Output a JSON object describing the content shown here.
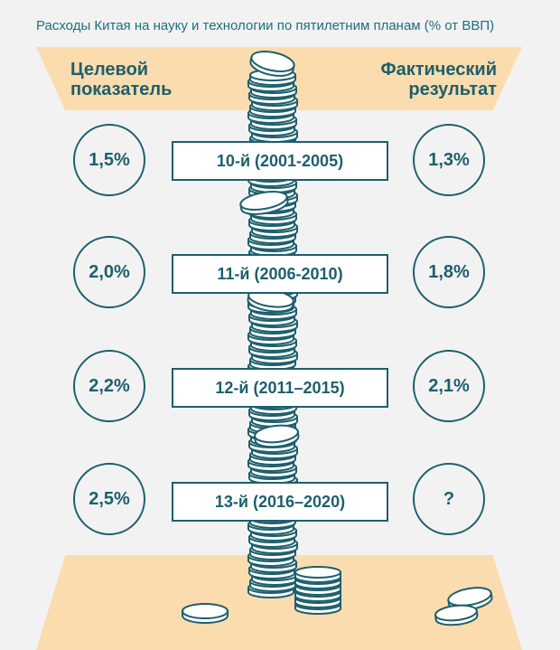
{
  "title": "Расходы Китая на науку и технологии по пятилетним планам (% от ВВП)",
  "headers": {
    "target": [
      "Целевой",
      "показатель"
    ],
    "actual": [
      "Фактический",
      "результат"
    ]
  },
  "plans": [
    {
      "label": "10-й (2001-2005)",
      "target": "1,5%",
      "actual": "1,3%"
    },
    {
      "label": "11-й (2006-2010)",
      "target": "2,0%",
      "actual": "1,8%"
    },
    {
      "label": "12-й (2011–2015)",
      "target": "2,2%",
      "actual": "2,1%"
    },
    {
      "label": "13-й (2016–2020)",
      "target": "2,5%",
      "actual": "?"
    }
  ],
  "colors": {
    "accent": "#1d5f6d",
    "band": "#fbdcae",
    "background": "#f2f2f2",
    "title": "#1d6f80"
  }
}
